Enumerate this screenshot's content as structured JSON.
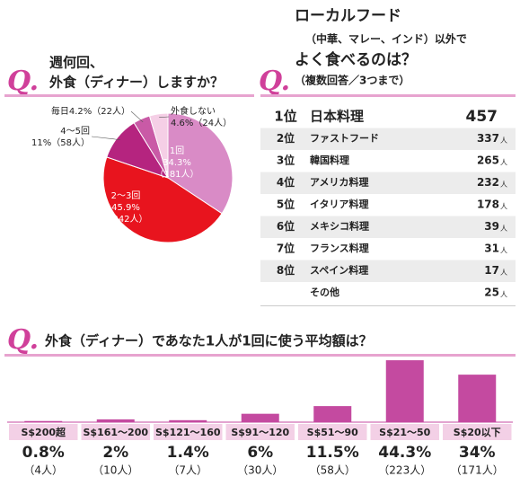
{
  "chart_data": [
    {
      "type": "pie",
      "q_mark": "Q.",
      "title_lines": [
        "週何回、",
        "外食（ディナー）しますか？"
      ],
      "categories": [
        "1回",
        "2〜3回",
        "4〜5回",
        "毎日",
        "外食しない"
      ],
      "values": [
        34.3,
        45.9,
        11,
        4.2,
        4.6
      ],
      "value_labels": [
        "34.3%",
        "45.9%",
        "11%",
        "4.2%",
        "4.6%"
      ],
      "count_labels": [
        "（181人）",
        "（242人）",
        "（58人）",
        "（22人）",
        "（24人）"
      ],
      "colors": [
        "#d98bc6",
        "#e8141e",
        "#b5247f",
        "#c95aa6",
        "#f5cfe6"
      ]
    },
    {
      "type": "bar",
      "q_mark": "Q.",
      "title": "外食（ディナー）であなた1人が1回に使う平均額は？",
      "categories": [
        "S$200超",
        "S$161〜200",
        "S$121〜160",
        "S$91〜120",
        "S$51〜90",
        "S$21〜50",
        "S$20以下"
      ],
      "values": [
        0.8,
        2,
        1.4,
        6,
        11.5,
        44.3,
        34
      ],
      "value_labels": [
        "0.8%",
        "2%",
        "1.4%",
        "6%",
        "11.5%",
        "44.3%",
        "34%"
      ],
      "count_labels": [
        "（4人）",
        "（10人）",
        "（7人）",
        "（30人）",
        "（58人）",
        "（223人）",
        "（171人）"
      ],
      "color": "#c44aa0",
      "ylim": [
        0,
        45
      ]
    }
  ],
  "ranking": {
    "q_mark": "Q.",
    "title_lines": [
      "ローカルフード",
      "（中華、マレー、インド）以外で",
      "よく食べるのは？",
      "（複数回答／3つまで）"
    ],
    "unit": "人",
    "rows": [
      [
        "1位",
        "日本料理",
        457
      ],
      [
        "2位",
        "ファストフード",
        337
      ],
      [
        "3位",
        "韓国料理",
        265
      ],
      [
        "4位",
        "アメリカ料理",
        232
      ],
      [
        "5位",
        "イタリア料理",
        178
      ],
      [
        "6位",
        "メキシコ料理",
        39
      ],
      [
        "7位",
        "フランス料理",
        31
      ],
      [
        "8位",
        "スペイン料理",
        17
      ],
      [
        null,
        "その他",
        25
      ]
    ]
  }
}
